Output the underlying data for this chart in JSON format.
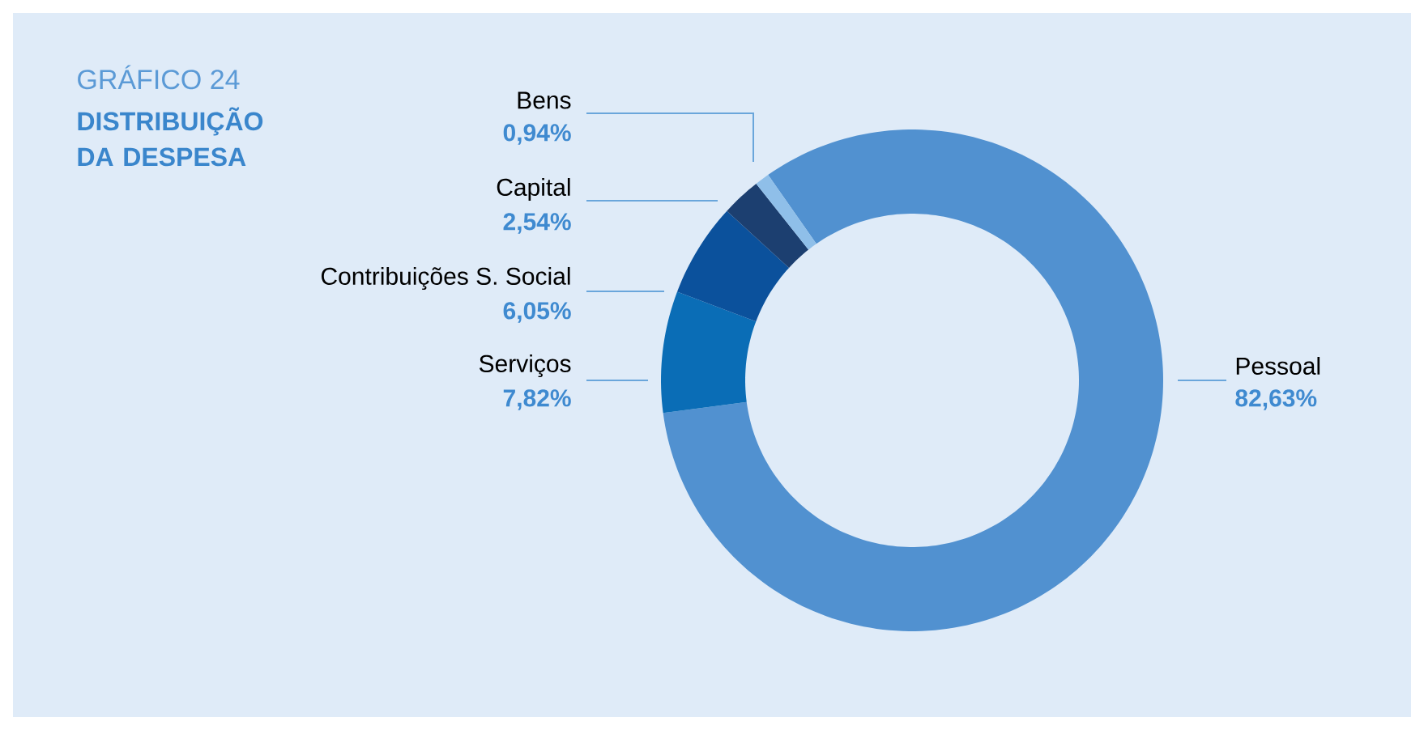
{
  "chart_data": {
    "type": "donut",
    "title": "GRÁFICO 24",
    "subtitle": "DISTRIBUIÇÃO DA DESPESA",
    "categories": [
      "Pessoal",
      "Serviços",
      "Contribuições S. Social",
      "Capital",
      "Bens"
    ],
    "values": [
      82.63,
      7.82,
      6.05,
      2.54,
      0.94
    ],
    "value_labels": [
      "82,63%",
      "7,82%",
      "6,05%",
      "2,54%",
      "0,94%"
    ],
    "colors": [
      "#5191d0",
      "#0a6db6",
      "#0b519c",
      "#1c3f70",
      "#8fbfe9"
    ]
  }
}
